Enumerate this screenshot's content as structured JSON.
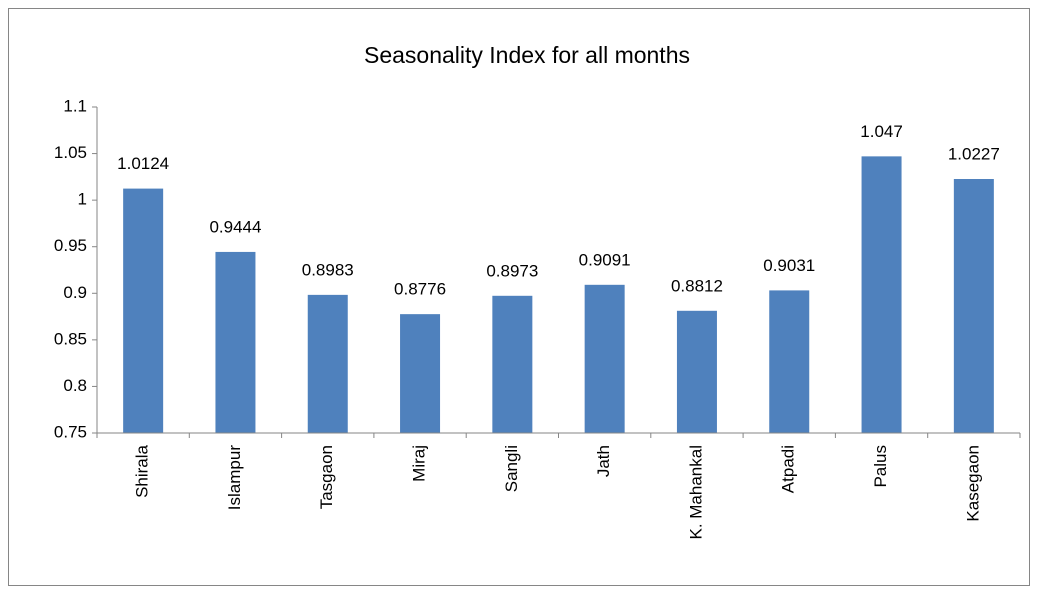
{
  "chart_data": {
    "type": "bar",
    "title": "Seasonality Index for all months",
    "categories": [
      "Shirala",
      "Islampur",
      "Tasgaon",
      "Miraj",
      "Sangli",
      "Jath",
      "K. Mahankal",
      "Atpadi",
      "Palus",
      "Kasegaon"
    ],
    "values": [
      1.0124,
      0.9444,
      0.8983,
      0.8776,
      0.8973,
      0.9091,
      0.8812,
      0.9031,
      1.047,
      1.0227
    ],
    "color": "#4f81bd",
    "ylim": [
      0.75,
      1.1
    ],
    "yticks": [
      0.75,
      0.8,
      0.85,
      0.9,
      0.95,
      1,
      1.05,
      1.1
    ],
    "grid": false
  }
}
